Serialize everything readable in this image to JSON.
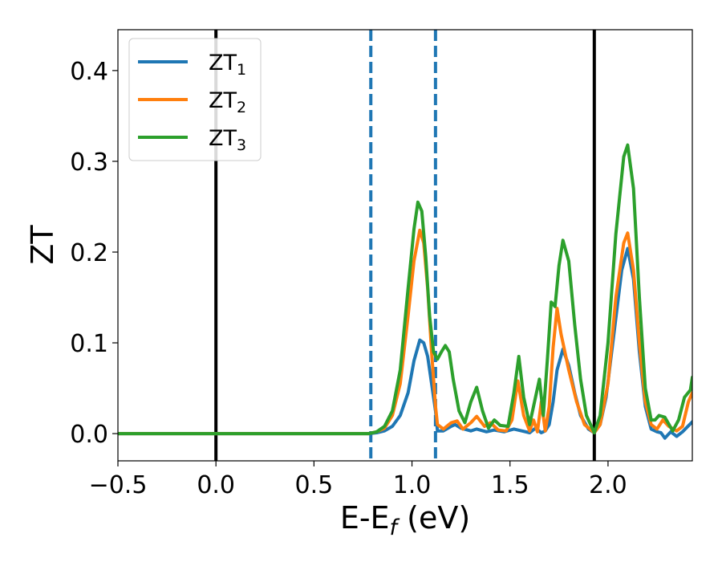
{
  "chart_data": {
    "type": "line",
    "xlabel_main": "E-E",
    "xlabel_sub": "f",
    "xlabel_unit": " (eV)",
    "ylabel": "ZT",
    "xlim": [
      -0.5,
      2.43
    ],
    "ylim": [
      -0.03,
      0.445
    ],
    "xticks": [
      -0.5,
      0.0,
      0.5,
      1.0,
      1.5,
      2.0
    ],
    "xtick_labels": [
      "−0.5",
      "0.0",
      "0.5",
      "1.0",
      "1.5",
      "2.0"
    ],
    "yticks": [
      0.0,
      0.1,
      0.2,
      0.3,
      0.4
    ],
    "ytick_labels": [
      "0.0",
      "0.1",
      "0.2",
      "0.3",
      "0.4"
    ],
    "grid": false,
    "legend_position": "top-left",
    "vlines": [
      {
        "x": 0.0,
        "style": "solid",
        "color": "#000000"
      },
      {
        "x": 0.79,
        "style": "dashed",
        "color": "#1f77b4"
      },
      {
        "x": 1.12,
        "style": "dashed",
        "color": "#1f77b4"
      },
      {
        "x": 1.93,
        "style": "solid",
        "color": "#000000"
      }
    ],
    "series": [
      {
        "name_main": "ZT",
        "name_sub": "1",
        "color": "#1f77b4",
        "points": [
          [
            -0.5,
            0
          ],
          [
            0.78,
            0
          ],
          [
            0.82,
            0.001
          ],
          [
            0.86,
            0.003
          ],
          [
            0.9,
            0.008
          ],
          [
            0.94,
            0.02
          ],
          [
            0.98,
            0.045
          ],
          [
            1.01,
            0.08
          ],
          [
            1.04,
            0.103
          ],
          [
            1.06,
            0.1
          ],
          [
            1.08,
            0.085
          ],
          [
            1.1,
            0.055
          ],
          [
            1.12,
            0.025
          ],
          [
            1.13,
            0.003
          ],
          [
            1.16,
            0.003
          ],
          [
            1.2,
            0.008
          ],
          [
            1.22,
            0.01
          ],
          [
            1.25,
            0.006
          ],
          [
            1.3,
            0.003
          ],
          [
            1.33,
            0.005
          ],
          [
            1.38,
            0.002
          ],
          [
            1.42,
            0.004
          ],
          [
            1.47,
            0.002
          ],
          [
            1.52,
            0.005
          ],
          [
            1.56,
            0.003
          ],
          [
            1.6,
            0.001
          ],
          [
            1.63,
            0.006
          ],
          [
            1.66,
            0.001
          ],
          [
            1.68,
            0.003
          ],
          [
            1.7,
            0.01
          ],
          [
            1.72,
            0.035
          ],
          [
            1.74,
            0.07
          ],
          [
            1.77,
            0.093
          ],
          [
            1.8,
            0.075
          ],
          [
            1.83,
            0.045
          ],
          [
            1.86,
            0.02
          ],
          [
            1.9,
            0.005
          ],
          [
            1.93,
            0.001
          ],
          [
            1.96,
            0.01
          ],
          [
            1.99,
            0.04
          ],
          [
            2.03,
            0.11
          ],
          [
            2.07,
            0.18
          ],
          [
            2.1,
            0.204
          ],
          [
            2.13,
            0.17
          ],
          [
            2.16,
            0.09
          ],
          [
            2.19,
            0.03
          ],
          [
            2.22,
            0.005
          ],
          [
            2.25,
            0.002
          ],
          [
            2.27,
            0.001
          ],
          [
            2.29,
            -0.005
          ],
          [
            2.32,
            0.002
          ],
          [
            2.35,
            -0.003
          ],
          [
            2.38,
            0.002
          ],
          [
            2.43,
            0.013
          ]
        ]
      },
      {
        "name_main": "ZT",
        "name_sub": "2",
        "color": "#ff7f0e",
        "points": [
          [
            -0.5,
            0
          ],
          [
            0.78,
            0
          ],
          [
            0.82,
            0.002
          ],
          [
            0.86,
            0.006
          ],
          [
            0.9,
            0.02
          ],
          [
            0.94,
            0.055
          ],
          [
            0.98,
            0.13
          ],
          [
            1.01,
            0.19
          ],
          [
            1.04,
            0.224
          ],
          [
            1.06,
            0.21
          ],
          [
            1.08,
            0.16
          ],
          [
            1.1,
            0.09
          ],
          [
            1.12,
            0.03
          ],
          [
            1.13,
            0.01
          ],
          [
            1.16,
            0.005
          ],
          [
            1.2,
            0.012
          ],
          [
            1.23,
            0.014
          ],
          [
            1.26,
            0.005
          ],
          [
            1.3,
            0.012
          ],
          [
            1.33,
            0.019
          ],
          [
            1.37,
            0.008
          ],
          [
            1.4,
            0.012
          ],
          [
            1.44,
            0.004
          ],
          [
            1.48,
            0.003
          ],
          [
            1.51,
            0.015
          ],
          [
            1.54,
            0.058
          ],
          [
            1.57,
            0.02
          ],
          [
            1.6,
            0.003
          ],
          [
            1.62,
            0.015
          ],
          [
            1.64,
            0.002
          ],
          [
            1.66,
            0.035
          ],
          [
            1.68,
            0.003
          ],
          [
            1.7,
            0.03
          ],
          [
            1.72,
            0.095
          ],
          [
            1.74,
            0.138
          ],
          [
            1.76,
            0.11
          ],
          [
            1.8,
            0.07
          ],
          [
            1.84,
            0.035
          ],
          [
            1.88,
            0.01
          ],
          [
            1.93,
            0.001
          ],
          [
            1.96,
            0.01
          ],
          [
            2.0,
            0.055
          ],
          [
            2.04,
            0.15
          ],
          [
            2.08,
            0.21
          ],
          [
            2.1,
            0.221
          ],
          [
            2.13,
            0.18
          ],
          [
            2.16,
            0.1
          ],
          [
            2.19,
            0.035
          ],
          [
            2.22,
            0.01
          ],
          [
            2.25,
            0.005
          ],
          [
            2.28,
            0.015
          ],
          [
            2.31,
            0.008
          ],
          [
            2.35,
            0.003
          ],
          [
            2.38,
            0.008
          ],
          [
            2.41,
            0.035
          ],
          [
            2.43,
            0.045
          ]
        ]
      },
      {
        "name_main": "ZT",
        "name_sub": "3",
        "color": "#2ca02c",
        "points": [
          [
            -0.5,
            0
          ],
          [
            0.78,
            0
          ],
          [
            0.82,
            0.002
          ],
          [
            0.86,
            0.008
          ],
          [
            0.9,
            0.025
          ],
          [
            0.94,
            0.07
          ],
          [
            0.98,
            0.16
          ],
          [
            1.01,
            0.225
          ],
          [
            1.03,
            0.255
          ],
          [
            1.05,
            0.245
          ],
          [
            1.07,
            0.195
          ],
          [
            1.09,
            0.13
          ],
          [
            1.11,
            0.09
          ],
          [
            1.13,
            0.082
          ],
          [
            1.15,
            0.09
          ],
          [
            1.17,
            0.097
          ],
          [
            1.19,
            0.09
          ],
          [
            1.21,
            0.06
          ],
          [
            1.24,
            0.025
          ],
          [
            1.27,
            0.012
          ],
          [
            1.3,
            0.035
          ],
          [
            1.33,
            0.051
          ],
          [
            1.36,
            0.025
          ],
          [
            1.39,
            0.006
          ],
          [
            1.42,
            0.015
          ],
          [
            1.45,
            0.009
          ],
          [
            1.49,
            0.008
          ],
          [
            1.52,
            0.045
          ],
          [
            1.545,
            0.085
          ],
          [
            1.57,
            0.04
          ],
          [
            1.6,
            0.01
          ],
          [
            1.63,
            0.04
          ],
          [
            1.65,
            0.06
          ],
          [
            1.67,
            0.02
          ],
          [
            1.69,
            0.08
          ],
          [
            1.71,
            0.145
          ],
          [
            1.73,
            0.14
          ],
          [
            1.75,
            0.185
          ],
          [
            1.77,
            0.213
          ],
          [
            1.8,
            0.19
          ],
          [
            1.83,
            0.12
          ],
          [
            1.86,
            0.06
          ],
          [
            1.89,
            0.02
          ],
          [
            1.93,
            0.001
          ],
          [
            1.96,
            0.02
          ],
          [
            2.0,
            0.1
          ],
          [
            2.04,
            0.22
          ],
          [
            2.08,
            0.305
          ],
          [
            2.1,
            0.318
          ],
          [
            2.13,
            0.27
          ],
          [
            2.16,
            0.15
          ],
          [
            2.19,
            0.05
          ],
          [
            2.22,
            0.015
          ],
          [
            2.24,
            0.015
          ],
          [
            2.26,
            0.02
          ],
          [
            2.29,
            0.018
          ],
          [
            2.33,
            0.003
          ],
          [
            2.36,
            0.015
          ],
          [
            2.39,
            0.04
          ],
          [
            2.42,
            0.048
          ],
          [
            2.43,
            0.062
          ]
        ]
      }
    ]
  }
}
